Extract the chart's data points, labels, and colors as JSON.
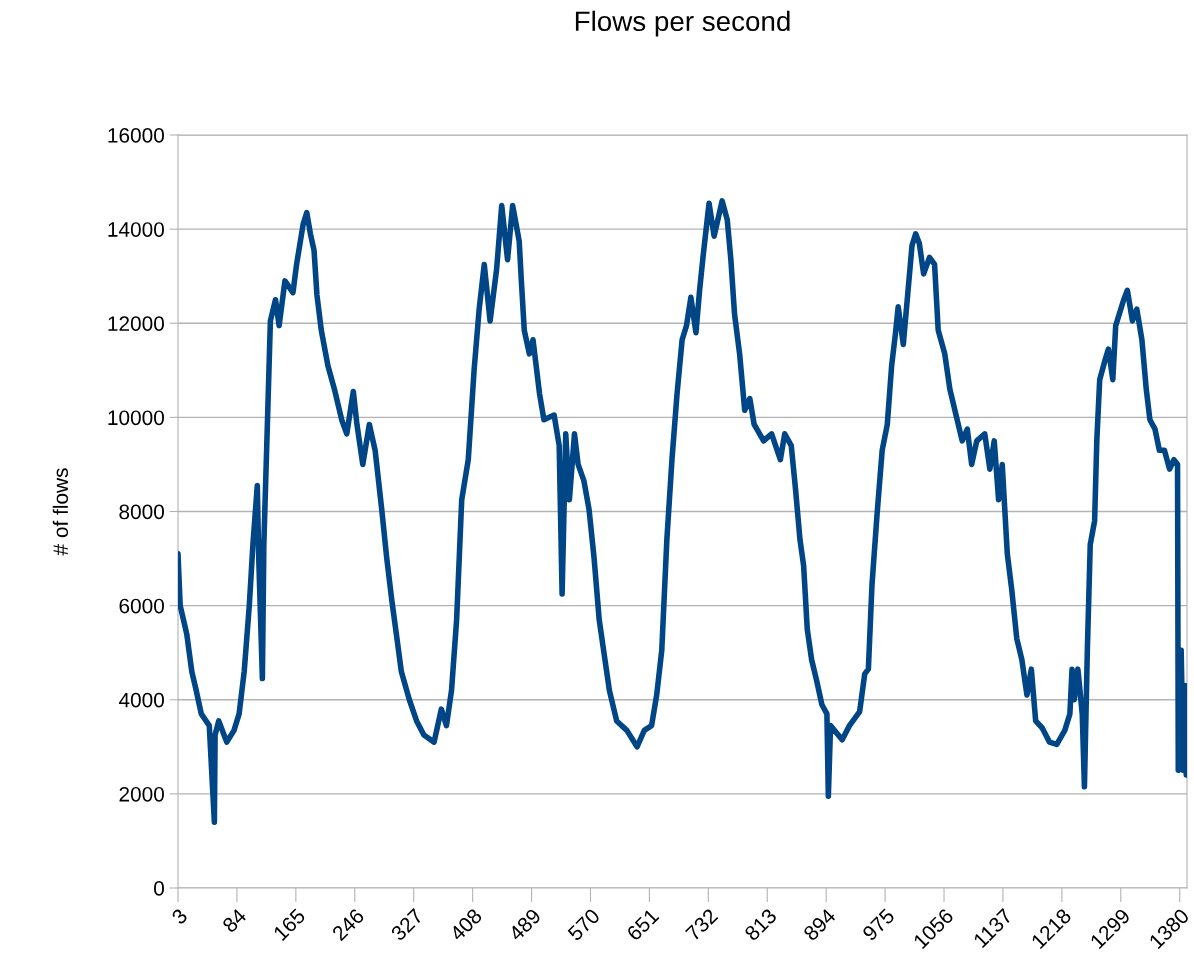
{
  "chart_data": {
    "type": "line",
    "title": "Flows per second",
    "ylabel": "# of flows",
    "xlim": [
      3,
      1390
    ],
    "xticks": [
      3,
      84,
      165,
      246,
      327,
      408,
      489,
      570,
      651,
      732,
      813,
      894,
      975,
      1056,
      1137,
      1218,
      1299,
      1380
    ],
    "ylim": [
      0,
      16000
    ],
    "yticks": [
      0,
      2000,
      4000,
      6000,
      8000,
      10000,
      12000,
      14000,
      16000
    ],
    "grid": "y",
    "marker": "none",
    "line_style": "solid",
    "series": [
      {
        "color": "#004586",
        "x": [
          3,
          6,
          15,
          22,
          28,
          35,
          46,
          53,
          54,
          59,
          70,
          80,
          87,
          94,
          101,
          106,
          112,
          114,
          119,
          121,
          125,
          130,
          137,
          142,
          150,
          161,
          166,
          175,
          180,
          185,
          190,
          194,
          200,
          209,
          218,
          228,
          235,
          244,
          249,
          257,
          266,
          274,
          283,
          290,
          297,
          304,
          310,
          321,
          331,
          341,
          355,
          365,
          372,
          379,
          386,
          393,
          402,
          410,
          417,
          424,
          432,
          441,
          448,
          456,
          463,
          472,
          475,
          479,
          486,
          491,
          500,
          506,
          520,
          527,
          531,
          536,
          541,
          548,
          553,
          561,
          568,
          575,
          582,
          589,
          596,
          606,
          620,
          634,
          644,
          654,
          661,
          668,
          675,
          682,
          689,
          696,
          702,
          708,
          715,
          720,
          725,
          729,
          733,
          740,
          751,
          758,
          763,
          768,
          775,
          782,
          789,
          795,
          808,
          819,
          831,
          837,
          846,
          852,
          858,
          863,
          868,
          874,
          881,
          888,
          895,
          897,
          900,
          916,
          926,
          940,
          947,
          952,
          957,
          964,
          971,
          978,
          984,
          989,
          993,
          1000,
          1006,
          1012,
          1017,
          1022,
          1028,
          1036,
          1043,
          1048,
          1057,
          1064,
          1074,
          1081,
          1088,
          1094,
          1101,
          1112,
          1119,
          1125,
          1131,
          1136,
          1143,
          1149,
          1156,
          1163,
          1170,
          1176,
          1182,
          1191,
          1201,
          1211,
          1222,
          1229,
          1232,
          1235,
          1240,
          1246,
          1249,
          1253,
          1257,
          1263,
          1266,
          1270,
          1277,
          1282,
          1288,
          1292,
          1297,
          1303,
          1308,
          1315,
          1321,
          1328,
          1334,
          1339,
          1346,
          1352,
          1359,
          1366,
          1372,
          1377,
          1378,
          1382,
          1385,
          1388,
          1389
        ],
        "values": [
          7100,
          6000,
          5400,
          4600,
          4200,
          3700,
          3450,
          1400,
          3250,
          3550,
          3100,
          3350,
          3700,
          4600,
          6000,
          7300,
          8550,
          7000,
          4450,
          7300,
          9400,
          12050,
          12500,
          11950,
          12900,
          12650,
          13250,
          14100,
          14350,
          13900,
          13550,
          12600,
          11850,
          11100,
          10600,
          9950,
          9650,
          10550,
          9850,
          9000,
          9850,
          9300,
          8050,
          7000,
          6100,
          5300,
          4600,
          4000,
          3550,
          3250,
          3100,
          3800,
          3450,
          4200,
          5700,
          8250,
          9100,
          11000,
          12300,
          13250,
          12050,
          13150,
          14500,
          13350,
          14500,
          13750,
          12900,
          11850,
          11350,
          11650,
          10500,
          9950,
          10050,
          9400,
          6250,
          9650,
          8250,
          9650,
          9000,
          8650,
          8050,
          7000,
          5700,
          4950,
          4200,
          3550,
          3350,
          3000,
          3350,
          3450,
          4100,
          5050,
          7400,
          9100,
          10500,
          11650,
          11950,
          12550,
          11800,
          12700,
          13450,
          14000,
          14550,
          13850,
          14600,
          14200,
          13350,
          12200,
          11350,
          10150,
          10400,
          9850,
          9500,
          9650,
          9100,
          9650,
          9400,
          8450,
          7400,
          6850,
          5500,
          4850,
          4400,
          3900,
          3700,
          1950,
          3450,
          3150,
          3450,
          3750,
          4550,
          4650,
          6450,
          7950,
          9300,
          9850,
          11100,
          11750,
          12350,
          11550,
          12600,
          13650,
          13900,
          13700,
          13050,
          13400,
          13250,
          11850,
          11350,
          10600,
          9950,
          9500,
          9750,
          9000,
          9500,
          9650,
          8900,
          9500,
          8250,
          9000,
          7100,
          6350,
          5300,
          4850,
          4100,
          4650,
          3550,
          3400,
          3100,
          3050,
          3350,
          3700,
          4650,
          4000,
          4650,
          3700,
          2150,
          5050,
          7300,
          7800,
          9500,
          10800,
          11200,
          11450,
          10800,
          11950,
          12200,
          12500,
          12700,
          12050,
          12300,
          11650,
          10600,
          9950,
          9750,
          9300,
          9300,
          8900,
          9100,
          9000,
          2500,
          5050,
          2500,
          4300,
          2400
        ]
      }
    ]
  }
}
